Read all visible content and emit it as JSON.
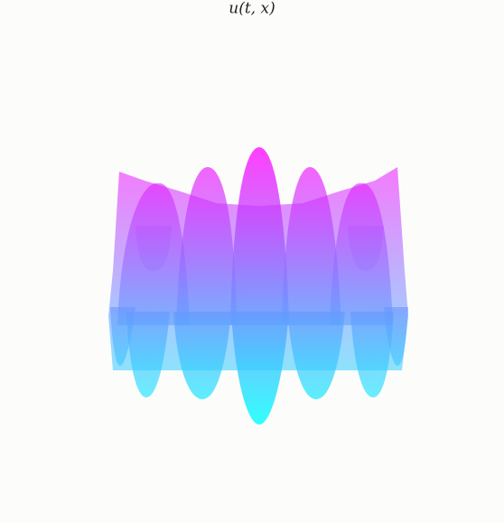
{
  "chart_data": {
    "type": "surface",
    "title": "u(t, x)",
    "colormap": [
      "#00ffff",
      "#ff00ff"
    ]
  }
}
